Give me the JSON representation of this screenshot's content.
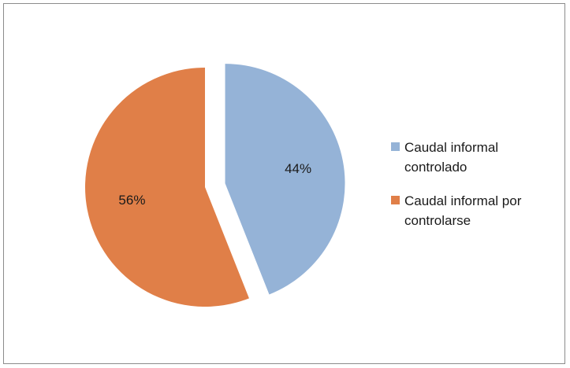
{
  "chart_data": {
    "type": "pie",
    "title": "",
    "slices": [
      {
        "label": "Caudal informal controlado",
        "value": 44,
        "display": "44%",
        "color": "#95b3d7",
        "exploded": true
      },
      {
        "label": "Caudal informal por controlarse",
        "value": 56,
        "display": "56%",
        "color": "#e07f48",
        "exploded": false
      }
    ],
    "legend_position": "right"
  }
}
